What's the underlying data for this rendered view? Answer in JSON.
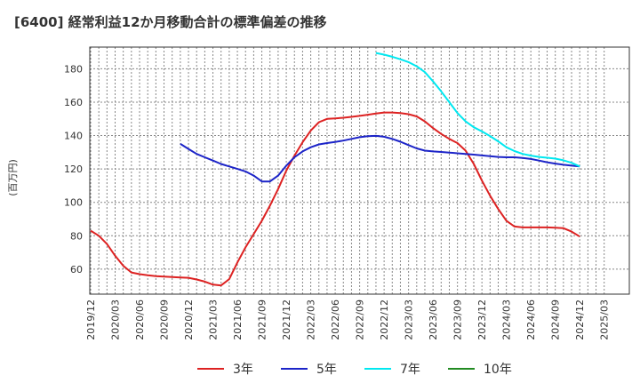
{
  "chart_data": {
    "type": "line",
    "title": "[6400]  経常利益12か月移動合計の標準偏差の推移",
    "ylabel": "(百万円)",
    "xlabel": "",
    "ylim": [
      45,
      193
    ],
    "yticks": [
      60,
      80,
      100,
      120,
      140,
      160,
      180
    ],
    "x_tick_labels": [
      "2019/12",
      "2020/03",
      "2020/06",
      "2020/09",
      "2020/12",
      "2021/03",
      "2021/06",
      "2021/09",
      "2021/12",
      "2022/03",
      "2022/06",
      "2022/09",
      "2022/12",
      "2023/03",
      "2023/06",
      "2023/09",
      "2023/12",
      "2024/03",
      "2024/06",
      "2024/09",
      "2024/12",
      "2025/03"
    ],
    "grid": true,
    "legend_position": "bottom",
    "series": [
      {
        "name": "3年",
        "color": "#dd2222",
        "x": [
          "2019/12",
          "2020/01",
          "2020/02",
          "2020/03",
          "2020/04",
          "2020/05",
          "2020/06",
          "2020/07",
          "2020/08",
          "2020/09",
          "2020/10",
          "2020/11",
          "2020/12",
          "2021/01",
          "2021/02",
          "2021/03",
          "2021/04",
          "2021/05",
          "2021/06",
          "2021/07",
          "2021/08",
          "2021/09",
          "2021/10",
          "2021/11",
          "2021/12",
          "2022/01",
          "2022/02",
          "2022/03",
          "2022/04",
          "2022/05",
          "2022/06",
          "2022/07",
          "2022/08",
          "2022/09",
          "2022/10",
          "2022/11",
          "2022/12",
          "2023/01",
          "2023/02",
          "2023/03",
          "2023/04",
          "2023/05",
          "2023/06",
          "2023/07",
          "2023/08",
          "2023/09",
          "2023/10",
          "2023/11",
          "2023/12",
          "2024/01",
          "2024/02",
          "2024/03",
          "2024/04",
          "2024/05",
          "2024/06",
          "2024/07",
          "2024/08",
          "2024/09",
          "2024/10",
          "2024/11",
          "2024/12"
        ],
        "values": [
          83,
          80,
          75,
          68,
          62,
          58,
          57,
          56.3,
          55.8,
          55.5,
          55.2,
          55,
          54.8,
          53.8,
          52.5,
          50.7,
          50.2,
          54,
          64,
          73,
          81,
          89,
          98,
          108,
          119,
          128,
          136,
          143,
          148,
          150,
          150.3,
          150.7,
          151.2,
          151.8,
          152.5,
          153.2,
          153.8,
          153.8,
          153.5,
          152.8,
          151.5,
          148.5,
          144.5,
          141,
          138,
          135.5,
          131,
          123,
          113,
          104,
          96,
          89,
          85.5,
          85,
          85,
          85,
          85,
          84.8,
          84.5,
          82.5,
          79.5
        ]
      },
      {
        "name": "5年",
        "color": "#1c24c8",
        "x": [
          "2020/11",
          "2020/12",
          "2021/01",
          "2021/02",
          "2021/03",
          "2021/04",
          "2021/05",
          "2021/06",
          "2021/07",
          "2021/08",
          "2021/09",
          "2021/10",
          "2021/11",
          "2021/12",
          "2022/01",
          "2022/02",
          "2022/03",
          "2022/04",
          "2022/05",
          "2022/06",
          "2022/07",
          "2022/08",
          "2022/09",
          "2022/10",
          "2022/11",
          "2022/12",
          "2023/01",
          "2023/02",
          "2023/03",
          "2023/04",
          "2023/05",
          "2023/06",
          "2023/07",
          "2023/08",
          "2023/09",
          "2023/10",
          "2023/11",
          "2023/12",
          "2024/01",
          "2024/02",
          "2024/03",
          "2024/04",
          "2024/05",
          "2024/06",
          "2024/07",
          "2024/08",
          "2024/09",
          "2024/10",
          "2024/11",
          "2024/12"
        ],
        "values": [
          135,
          132,
          129,
          127,
          125,
          123,
          121.5,
          120,
          118.5,
          116,
          112.5,
          112.5,
          116,
          122,
          127,
          130.5,
          133,
          134.7,
          135.5,
          136.2,
          137,
          138,
          139,
          139.6,
          139.8,
          139.3,
          138,
          136.3,
          134.3,
          132.3,
          131,
          130.5,
          130.2,
          129.8,
          129.4,
          129,
          128.6,
          128.1,
          127.6,
          127.2,
          127,
          127,
          126.6,
          126,
          125,
          124,
          123.2,
          122.5,
          122,
          121.5
        ]
      },
      {
        "name": "7年",
        "color": "#00e8f0",
        "x": [
          "2022/11",
          "2022/12",
          "2023/01",
          "2023/02",
          "2023/03",
          "2023/04",
          "2023/05",
          "2023/06",
          "2023/07",
          "2023/08",
          "2023/09",
          "2023/10",
          "2023/11",
          "2023/12",
          "2024/01",
          "2024/02",
          "2024/03",
          "2024/04",
          "2024/05",
          "2024/06",
          "2024/07",
          "2024/08",
          "2024/09",
          "2024/10",
          "2024/11",
          "2024/12"
        ],
        "values": [
          189.5,
          188.5,
          187.2,
          185.7,
          184,
          181.5,
          178,
          172.5,
          166.5,
          160,
          153.5,
          148.5,
          145,
          142.5,
          139.7,
          136.5,
          133,
          130.7,
          129,
          128,
          127.2,
          126.7,
          126.2,
          125.2,
          123.7,
          121.5
        ]
      },
      {
        "name": "10年",
        "color": "#228b22",
        "x": [],
        "values": []
      }
    ]
  }
}
